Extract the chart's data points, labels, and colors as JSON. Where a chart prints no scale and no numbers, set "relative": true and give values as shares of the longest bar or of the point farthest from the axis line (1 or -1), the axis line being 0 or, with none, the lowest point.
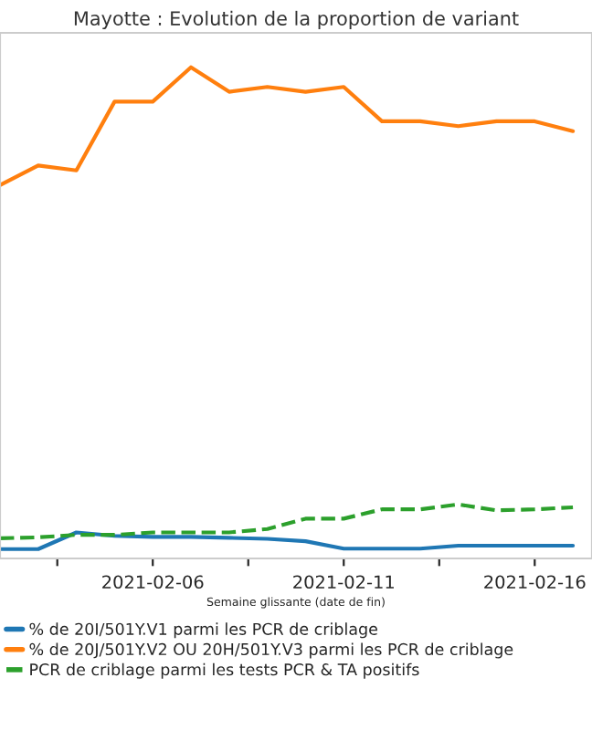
{
  "chart_data": {
    "type": "line",
    "title": "Mayotte : Evolution de la proportion de variant",
    "xlabel": "Semaine glissante (date de fin)",
    "relative": true,
    "grid": false,
    "legend": "bottom",
    "x": [
      "2021-02-02",
      "2021-02-03",
      "2021-02-04",
      "2021-02-05",
      "2021-02-06",
      "2021-02-07",
      "2021-02-08",
      "2021-02-09",
      "2021-02-10",
      "2021-02-11",
      "2021-02-12",
      "2021-02-13",
      "2021-02-14",
      "2021-02-15",
      "2021-02-16",
      "2021-02-17"
    ],
    "xlim": [
      "2021-02-02",
      "2021-02-17T12:00"
    ],
    "xticks": [
      {
        "value": "2021-02-03T12:00",
        "label": null
      },
      {
        "value": "2021-02-06",
        "label": "2021-02-06"
      },
      {
        "value": "2021-02-08T12:00",
        "label": null
      },
      {
        "value": "2021-02-11",
        "label": "2021-02-11"
      },
      {
        "value": "2021-02-13T12:00",
        "label": null
      },
      {
        "value": "2021-02-16",
        "label": "2021-02-16"
      }
    ],
    "series": [
      {
        "name": "% de 20I/501Y.V1 parmi les PCR de criblage",
        "color": "#1f77b4",
        "line_style": "solid",
        "values": [
          0.019,
          0.019,
          0.053,
          0.046,
          0.044,
          0.044,
          0.042,
          0.04,
          0.035,
          0.02,
          0.02,
          0.02,
          0.026,
          0.026,
          0.026,
          0.026
        ]
      },
      {
        "name": "% de 20J/501Y.V2 OU 20H/501Y.V3 parmi les PCR de criblage",
        "color": "#ff7f0e",
        "line_style": "solid",
        "values": [
          0.76,
          0.8,
          0.79,
          0.93,
          0.93,
          1,
          0.95,
          0.96,
          0.95,
          0.96,
          0.89,
          0.89,
          0.88,
          0.89,
          0.89,
          0.87
        ]
      },
      {
        "name": "PCR de criblage parmi les tests PCR & TA positifs",
        "color": "#2ca02c",
        "line_style": "dashed",
        "values": [
          0.041,
          0.043,
          0.048,
          0.048,
          0.053,
          0.053,
          0.053,
          0.06,
          0.081,
          0.081,
          0.1,
          0.1,
          0.11,
          0.098,
          0.1,
          0.104
        ]
      }
    ]
  }
}
